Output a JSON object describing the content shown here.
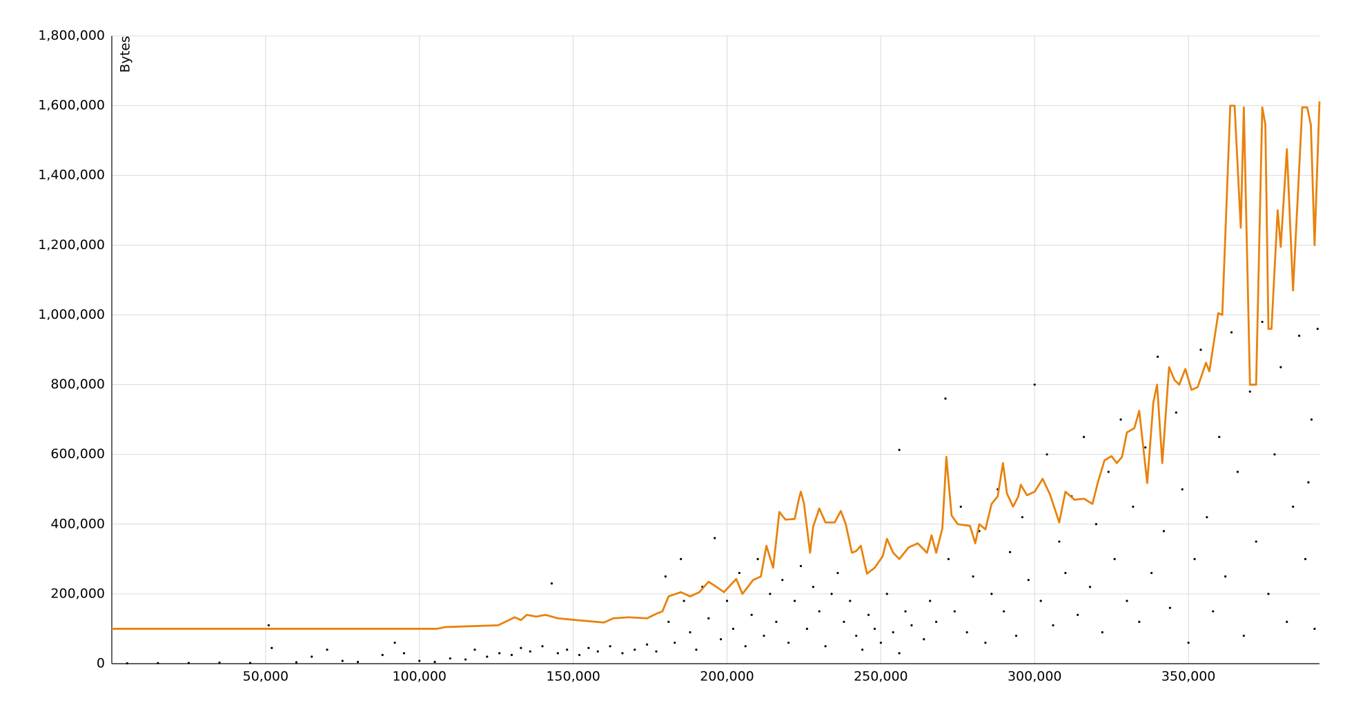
{
  "chart_data": {
    "type": "scatter",
    "y_label": "Bytes",
    "grid": true,
    "xlim": [
      0,
      392600
    ],
    "ylim": [
      0,
      1800000
    ],
    "xticks": [
      {
        "value": 50000,
        "label": "50,000"
      },
      {
        "value": 100000,
        "label": "100,000"
      },
      {
        "value": 150000,
        "label": "150,000"
      },
      {
        "value": 200000,
        "label": "200,000"
      },
      {
        "value": 250000,
        "label": "250,000"
      },
      {
        "value": 300000,
        "label": "300,000"
      },
      {
        "value": 350000,
        "label": "350,000"
      }
    ],
    "yticks": [
      0,
      {
        "value": 200000,
        "label": "200,000"
      },
      {
        "value": 400000,
        "label": "400,000"
      },
      {
        "value": 600000,
        "label": "600,000"
      },
      {
        "value": 800000,
        "label": "800,000"
      },
      {
        "value": 1000000,
        "label": "1,000,000"
      },
      {
        "value": 1200000,
        "label": "1,200,000"
      },
      {
        "value": 1400000,
        "label": "1,400,000"
      },
      {
        "value": 1600000,
        "label": "1,600,000"
      },
      {
        "value": 1800000,
        "label": "1,800,000"
      }
    ],
    "series": [
      {
        "type": "scatter",
        "color": "#000000",
        "x": [
          5000,
          15000,
          25000,
          35000,
          45000,
          51000,
          52000,
          60000,
          65000,
          70000,
          75000,
          80000,
          88000,
          92000,
          95000,
          100000,
          105000,
          110000,
          115000,
          118000,
          122000,
          126000,
          130000,
          133000,
          136000,
          140000,
          143000,
          145000,
          148000,
          152000,
          155000,
          158000,
          162000,
          166000,
          170000,
          174000,
          177000,
          180000,
          181000,
          183000,
          185000,
          186000,
          188000,
          190000,
          192000,
          194000,
          196000,
          198000,
          200000,
          202000,
          204000,
          206000,
          208000,
          210000,
          212000,
          214000,
          216000,
          218000,
          220000,
          222000,
          224000,
          226000,
          228000,
          230000,
          232000,
          234000,
          236000,
          238000,
          240000,
          242000,
          244000,
          246000,
          248000,
          250000,
          252000,
          254000,
          256000,
          256000,
          258000,
          260000,
          264000,
          266000,
          268000,
          271000,
          272000,
          274000,
          276000,
          278000,
          280000,
          282000,
          284000,
          286000,
          288000,
          290000,
          292000,
          294000,
          296000,
          298000,
          300000,
          302000,
          304000,
          306000,
          308000,
          310000,
          312000,
          314000,
          316000,
          318000,
          320000,
          322000,
          324000,
          326000,
          328000,
          330000,
          332000,
          334000,
          336000,
          338000,
          340000,
          342000,
          344000,
          346000,
          348000,
          350000,
          352000,
          354000,
          356000,
          358000,
          360000,
          362000,
          364000,
          366000,
          368000,
          370000,
          372000,
          374000,
          376000,
          378000,
          380000,
          382000,
          384000,
          386000,
          388000,
          389000,
          390000,
          391000,
          392000
        ],
        "values": [
          1000,
          1500,
          2000,
          3000,
          2000,
          110000,
          45000,
          4000,
          20000,
          40000,
          8000,
          5000,
          25000,
          60000,
          30000,
          8000,
          5000,
          15000,
          12000,
          40000,
          20000,
          30000,
          25000,
          45000,
          35000,
          50000,
          230000,
          30000,
          40000,
          25000,
          45000,
          35000,
          50000,
          30000,
          40000,
          55000,
          35000,
          250000,
          120000,
          60000,
          300000,
          180000,
          90000,
          40000,
          220000,
          130000,
          360000,
          70000,
          180000,
          100000,
          260000,
          50000,
          140000,
          300000,
          80000,
          200000,
          120000,
          240000,
          60000,
          180000,
          280000,
          100000,
          220000,
          150000,
          50000,
          200000,
          260000,
          120000,
          180000,
          80000,
          40000,
          140000,
          100000,
          60000,
          200000,
          90000,
          30000,
          613000,
          150000,
          110000,
          70000,
          180000,
          120000,
          760000,
          300000,
          150000,
          450000,
          90000,
          250000,
          380000,
          60000,
          200000,
          500000,
          150000,
          320000,
          80000,
          420000,
          240000,
          800000,
          180000,
          600000,
          110000,
          350000,
          260000,
          480000,
          140000,
          650000,
          220000,
          400000,
          90000,
          550000,
          300000,
          700000,
          180000,
          450000,
          120000,
          620000,
          260000,
          880000,
          380000,
          160000,
          720000,
          500000,
          60000,
          300000,
          900000,
          420000,
          150000,
          650000,
          250000,
          950000,
          550000,
          80000,
          780000,
          350000,
          980000,
          200000,
          600000,
          850000,
          120000,
          450000,
          940000,
          300000,
          520000,
          700000,
          100000,
          960000
        ]
      },
      {
        "type": "line",
        "color": "#e8820c",
        "x": [
          0,
          105700,
          108500,
          125600,
          131000,
          133000,
          134900,
          138000,
          141000,
          145000,
          151000,
          160000,
          163000,
          168000,
          174000,
          177000,
          179000,
          181000,
          185000,
          188000,
          191000,
          194000,
          196600,
          199000,
          203000,
          205000,
          208500,
          211000,
          212800,
          215000,
          217000,
          219000,
          222000,
          223300,
          224000,
          225000,
          227000,
          228000,
          230000,
          232000,
          235000,
          237000,
          238600,
          240600,
          242000,
          243500,
          245500,
          248000,
          250600,
          252000,
          254000,
          256000,
          259000,
          262000,
          265000,
          266500,
          268000,
          270000,
          271300,
          273000,
          275000,
          279000,
          280700,
          282000,
          284000,
          286000,
          288000,
          289700,
          291000,
          293000,
          294700,
          295500,
          297500,
          300000,
          302600,
          305000,
          308000,
          310000,
          313000,
          316000,
          318800,
          320500,
          322700,
          325000,
          326700,
          328400,
          330000,
          332400,
          334000,
          336600,
          338600,
          339800,
          341500,
          343700,
          345500,
          347000,
          349000,
          351000,
          353000,
          355700,
          356800,
          359700,
          361000,
          363600,
          365000,
          367000,
          368000,
          370000,
          372000,
          374000,
          375000,
          376000,
          377000,
          379000,
          380000,
          382000,
          384000,
          387000,
          388600,
          389800,
          391000,
          392600
        ],
        "values": [
          100000,
          100000,
          105000,
          110000,
          133000,
          125000,
          140000,
          135000,
          140000,
          130000,
          125000,
          118000,
          130000,
          133000,
          130000,
          143000,
          150000,
          193000,
          205000,
          193000,
          205000,
          235000,
          220000,
          205000,
          243000,
          200000,
          240000,
          250000,
          338000,
          275000,
          435000,
          413000,
          415000,
          470000,
          493000,
          460000,
          318000,
          393000,
          445000,
          405000,
          405000,
          438000,
          400000,
          318000,
          323000,
          338000,
          258000,
          275000,
          308000,
          358000,
          318000,
          300000,
          333000,
          345000,
          318000,
          368000,
          318000,
          388000,
          593000,
          425000,
          400000,
          395000,
          345000,
          400000,
          385000,
          458000,
          480000,
          575000,
          488000,
          450000,
          480000,
          513000,
          483000,
          493000,
          530000,
          485000,
          405000,
          493000,
          470000,
          473000,
          458000,
          518000,
          583000,
          595000,
          575000,
          593000,
          663000,
          675000,
          725000,
          518000,
          750000,
          800000,
          575000,
          850000,
          813000,
          800000,
          845000,
          785000,
          793000,
          863000,
          838000,
          1005000,
          1000000,
          1600000,
          1600000,
          1250000,
          1595000,
          800000,
          800000,
          1595000,
          1545000,
          960000,
          960000,
          1300000,
          1195000,
          1475000,
          1070000,
          1595000,
          1595000,
          1545000,
          1200000,
          1612000
        ]
      }
    ]
  }
}
